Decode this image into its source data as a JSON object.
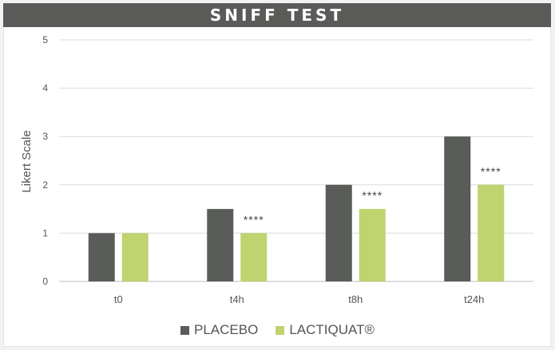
{
  "chart_data": {
    "type": "bar",
    "title": "SNIFF TEST",
    "ylabel": "Likert Scale",
    "xlabel": "",
    "ylim": [
      0,
      5
    ],
    "yticks": [
      0,
      1,
      2,
      3,
      4,
      5
    ],
    "grid": true,
    "legend_position": "bottom",
    "categories": [
      "t0",
      "t4h",
      "t8h",
      "t24h"
    ],
    "series": [
      {
        "name": "PLACEBO",
        "color": "#5a5c59",
        "values": [
          1,
          1.5,
          2,
          3
        ]
      },
      {
        "name": "LACTIQUAT®",
        "color": "#bfd36e",
        "values": [
          1,
          1,
          1.5,
          2
        ]
      }
    ],
    "annotations": [
      {
        "category": "t4h",
        "series": "LACTIQUAT®",
        "text": "****"
      },
      {
        "category": "t8h",
        "series": "LACTIQUAT®",
        "text": "****"
      },
      {
        "category": "t24h",
        "series": "LACTIQUAT®",
        "text": "****"
      }
    ]
  }
}
